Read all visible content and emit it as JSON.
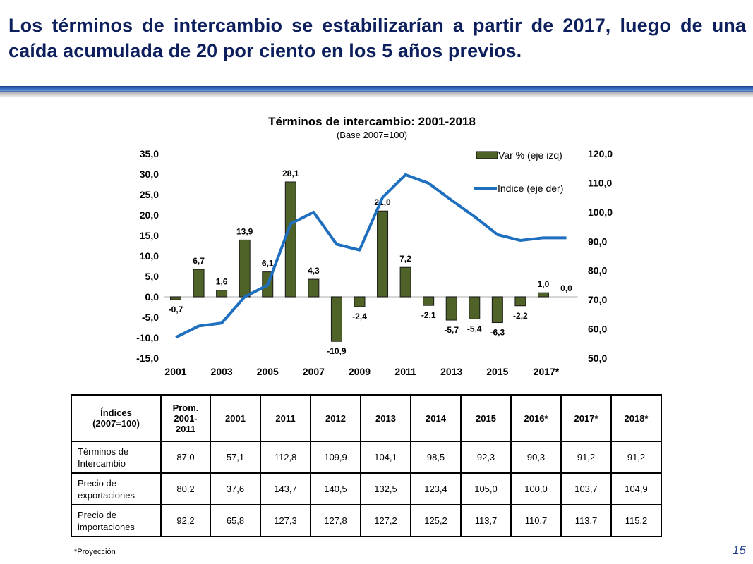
{
  "slide": {
    "title": "Los términos de intercambio se estabilizarían a partir de 2017, luego de una caída acumulada de 20 por ciento en los 5 años previos.",
    "footnote": "*Proyección",
    "page_number": "15"
  },
  "colors": {
    "title": "#0d1f5c",
    "bar_fill": "#4f6228",
    "line": "#1f6fbf",
    "page_number": "#1f3c88"
  },
  "chart_data": {
    "type": "bar",
    "title": "Términos de intercambio: 2001-2018",
    "subtitle": "(Base 2007=100)",
    "xlabel": "",
    "ylabel": "",
    "categories": [
      "2001",
      "2002",
      "2003",
      "2004",
      "2005",
      "2006",
      "2007",
      "2008",
      "2009",
      "2010",
      "2011",
      "2012",
      "2013",
      "2014",
      "2015",
      "2016",
      "2017*",
      "2018"
    ],
    "x_tick_labels": [
      "2001",
      "2003",
      "2005",
      "2007",
      "2009",
      "2011",
      "2013",
      "2015",
      "2017*"
    ],
    "series": [
      {
        "name": "Var % (eje izq)",
        "type": "bar",
        "axis": "left",
        "values": [
          -0.7,
          6.7,
          1.6,
          13.9,
          6.1,
          28.1,
          4.3,
          -10.9,
          -2.4,
          21.0,
          7.2,
          -2.1,
          -5.7,
          -5.4,
          -6.3,
          -2.2,
          1.0,
          0.0
        ],
        "labels": [
          "-0,7",
          "6,7",
          "1,6",
          "13,9",
          "6,1",
          "28,1",
          "4,3",
          "-10,9",
          "-2,4",
          "21,0",
          "7,2",
          "-2,1",
          "-5,7",
          "-5,4",
          "-6,3",
          "-2,2",
          "1,0",
          "0,0"
        ]
      },
      {
        "name": "Indice (eje der)",
        "type": "line",
        "axis": "right",
        "values": [
          57.1,
          61.0,
          62.0,
          71.0,
          75.0,
          96.0,
          100.0,
          89.0,
          87.0,
          105.0,
          112.8,
          109.9,
          104.1,
          98.5,
          92.3,
          90.3,
          91.2,
          91.2
        ]
      }
    ],
    "left_axis": {
      "min": -15,
      "max": 35,
      "step": 5,
      "tick_labels": [
        "35,0",
        "30,0",
        "25,0",
        "20,0",
        "15,0",
        "10,0",
        "5,0",
        "0,0",
        "-5,0",
        "-10,0",
        "-15,0"
      ]
    },
    "right_axis": {
      "min": 50,
      "max": 120,
      "step": 10,
      "tick_labels": [
        "120,0",
        "110,0",
        "100,0",
        "90,0",
        "80,0",
        "70,0",
        "60,0",
        "50,0"
      ]
    },
    "grid": false,
    "legend_position": "top-right"
  },
  "table": {
    "header": [
      "Índices (2007=100)",
      "Prom. 2001-2011",
      "2001",
      "2011",
      "2012",
      "2013",
      "2014",
      "2015",
      "2016*",
      "2017*",
      "2018*"
    ],
    "header_lines": {
      "c0": [
        "Índices",
        "(2007=100)"
      ],
      "c1": [
        "Prom.",
        "2001-",
        "2011"
      ]
    },
    "rows": [
      {
        "label": [
          "Términos de",
          "Intercambio"
        ],
        "values": [
          "87,0",
          "57,1",
          "112,8",
          "109,9",
          "104,1",
          "98,5",
          "92,3",
          "90,3",
          "91,2",
          "91,2"
        ]
      },
      {
        "label": [
          "Precio de",
          "exportaciones"
        ],
        "values": [
          "80,2",
          "37,6",
          "143,7",
          "140,5",
          "132,5",
          "123,4",
          "105,0",
          "100,0",
          "103,7",
          "104,9"
        ]
      },
      {
        "label": [
          "Precio de",
          "importaciones"
        ],
        "values": [
          "92,2",
          "65,8",
          "127,3",
          "127,8",
          "127,2",
          "125,2",
          "113,7",
          "110,7",
          "113,7",
          "115,2"
        ]
      }
    ]
  }
}
